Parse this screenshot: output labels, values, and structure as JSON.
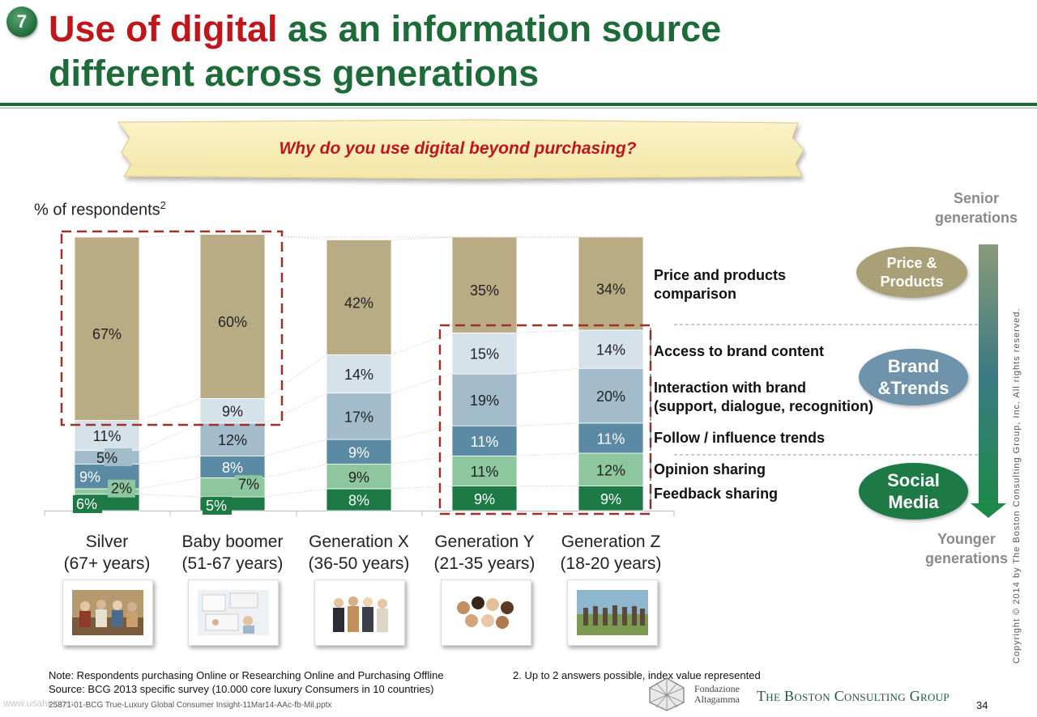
{
  "slide": {
    "number": "7",
    "title_red": "Use of digital",
    "title_green_1": " as an information source",
    "title_green_2": "different across generations",
    "question": "Why do you use digital beyond purchasing?",
    "yaxis": "% of respondents",
    "yaxis_sup": "2",
    "page": "34",
    "file_ref": "25871-01-BCG True-Luxury Global Consumer Insight-11Mar14-AAc-fb-Mil.pptx",
    "watermark": "www.usahk.com",
    "copyright": "Copyright © 2014 by The Boston Consulting Group, Inc. All rights reserved.",
    "note": "Note: Respondents purchasing Online or Researching Online and Purchasing Offline",
    "source": "Source: BCG 2013 specific survey (10.000 core luxury Consumers in 10 countries)",
    "footnote2": "2. Up to 2 answers possible, index value represented",
    "logo_bcg": "The Boston Consulting Group",
    "logo_alta_1": "Fondazione",
    "logo_alta_2": "Altagamma"
  },
  "categories": [
    {
      "name": "Silver",
      "range": "(67+ years)"
    },
    {
      "name": "Baby boomer",
      "range": "(51-67 years)"
    },
    {
      "name": "Generation X",
      "range": "(36-50 years)"
    },
    {
      "name": "Generation Y",
      "range": "(21-35 years)"
    },
    {
      "name": "Generation Z",
      "range": "(18-20 years)"
    }
  ],
  "legend": {
    "price_1": "Price and products",
    "price_2": "comparison",
    "access": "Access to brand content",
    "interaction_1": "Interaction with brand",
    "interaction_2": "(support, dialogue, recognition)",
    "follow": "Follow / influence trends",
    "opinion": "Opinion sharing",
    "feedback": "Feedback sharing"
  },
  "sidebar": {
    "senior_1": "Senior",
    "senior_2": "generations",
    "younger_1": "Younger",
    "younger_2": "generations",
    "oval_price_1": "Price &",
    "oval_price_2": "Products",
    "oval_brand_1": "Brand",
    "oval_brand_2": "&Trends",
    "oval_social_1": "Social",
    "oval_social_2": "Media"
  },
  "colors": {
    "green_dark": "#1e6b3a",
    "red": "#c0161b",
    "price": "#b9ac85",
    "access": "#d6e2ea",
    "interaction": "#a2bccb",
    "follow": "#5b8ba4",
    "opinion": "#8ec79e",
    "feedback": "#1d7a45"
  },
  "chart_data": {
    "type": "bar",
    "stacked": true,
    "categories": [
      "Silver",
      "Baby boomer",
      "Generation X",
      "Generation Y",
      "Generation Z"
    ],
    "series": [
      {
        "name": "Feedback sharing",
        "values": [
          6,
          5,
          8,
          9,
          9
        ]
      },
      {
        "name": "Opinion sharing",
        "values": [
          2,
          7,
          9,
          11,
          12
        ]
      },
      {
        "name": "Follow / influence trends",
        "values": [
          9,
          8,
          9,
          11,
          11
        ]
      },
      {
        "name": "Interaction with brand (support, dialogue, recognition)",
        "values": [
          5,
          12,
          17,
          19,
          20
        ]
      },
      {
        "name": "Access to brand content",
        "values": [
          11,
          9,
          14,
          15,
          14
        ]
      },
      {
        "name": "Price and products comparison",
        "values": [
          67,
          60,
          42,
          35,
          34
        ]
      }
    ],
    "ylabel": "% of respondents",
    "ylim": [
      0,
      100
    ],
    "highlighted_groups": [
      [
        "Silver",
        "Baby boomer"
      ],
      [
        "Generation Y",
        "Generation Z"
      ]
    ]
  }
}
